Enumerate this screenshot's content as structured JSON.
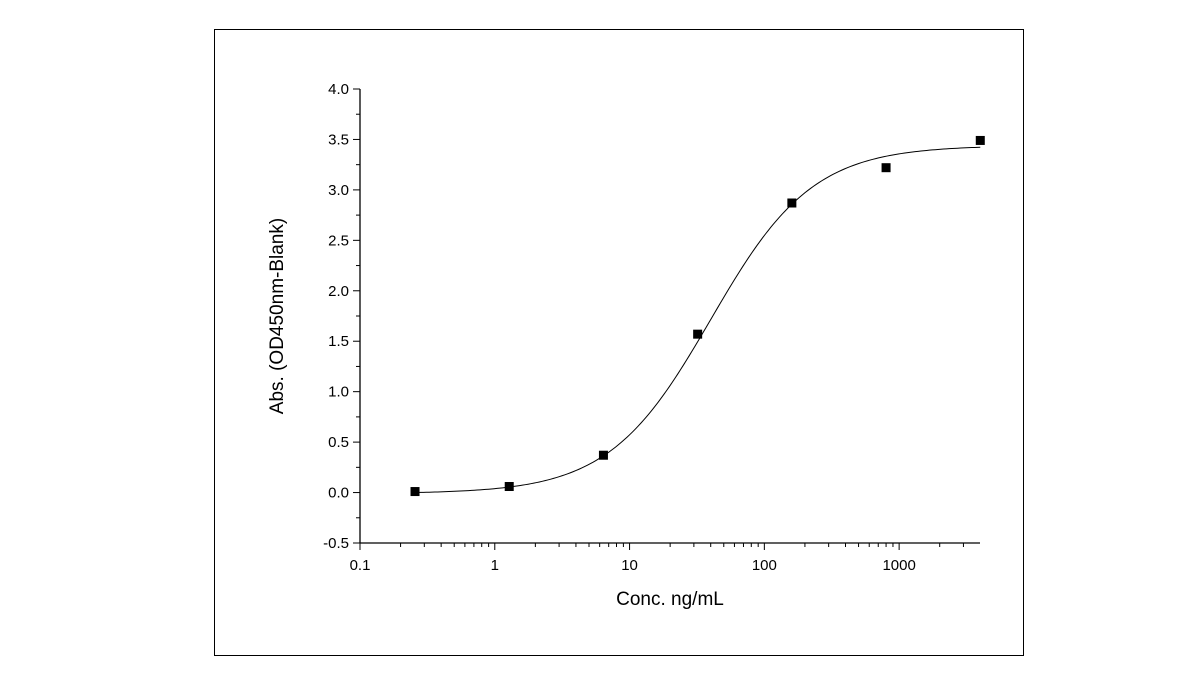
{
  "chart_data": {
    "type": "scatter",
    "title": "",
    "xlabel": "Conc. ng/mL",
    "ylabel": "Abs. (OD450nm-Blank)",
    "xscale": "log",
    "xlim": [
      0.1,
      5000
    ],
    "ylim": [
      -0.5,
      4.0
    ],
    "x_ticks": [
      0.1,
      1,
      10,
      100,
      1000
    ],
    "x_tick_labels": [
      "0.1",
      "1",
      "10",
      "100",
      "1000"
    ],
    "y_ticks": [
      -0.5,
      0.0,
      0.5,
      1.0,
      1.5,
      2.0,
      2.5,
      3.0,
      3.5,
      4.0
    ],
    "y_tick_labels": [
      "-0.5",
      "0.0",
      "0.5",
      "1.0",
      "1.5",
      "2.0",
      "2.5",
      "3.0",
      "3.5",
      "4.0"
    ],
    "grid": false,
    "legend": "none",
    "series": [
      {
        "marker": "square",
        "x": [
          0.256,
          1.28,
          6.4,
          32,
          160,
          800,
          4000
        ],
        "y": [
          0.01,
          0.06,
          0.37,
          1.57,
          2.87,
          3.22,
          3.49
        ]
      }
    ],
    "fit_curve": {
      "model": "4PL",
      "bottom": -0.01,
      "top": 3.44,
      "ec50": 40,
      "hill": 1.15,
      "x_range": [
        0.256,
        4000
      ]
    }
  }
}
